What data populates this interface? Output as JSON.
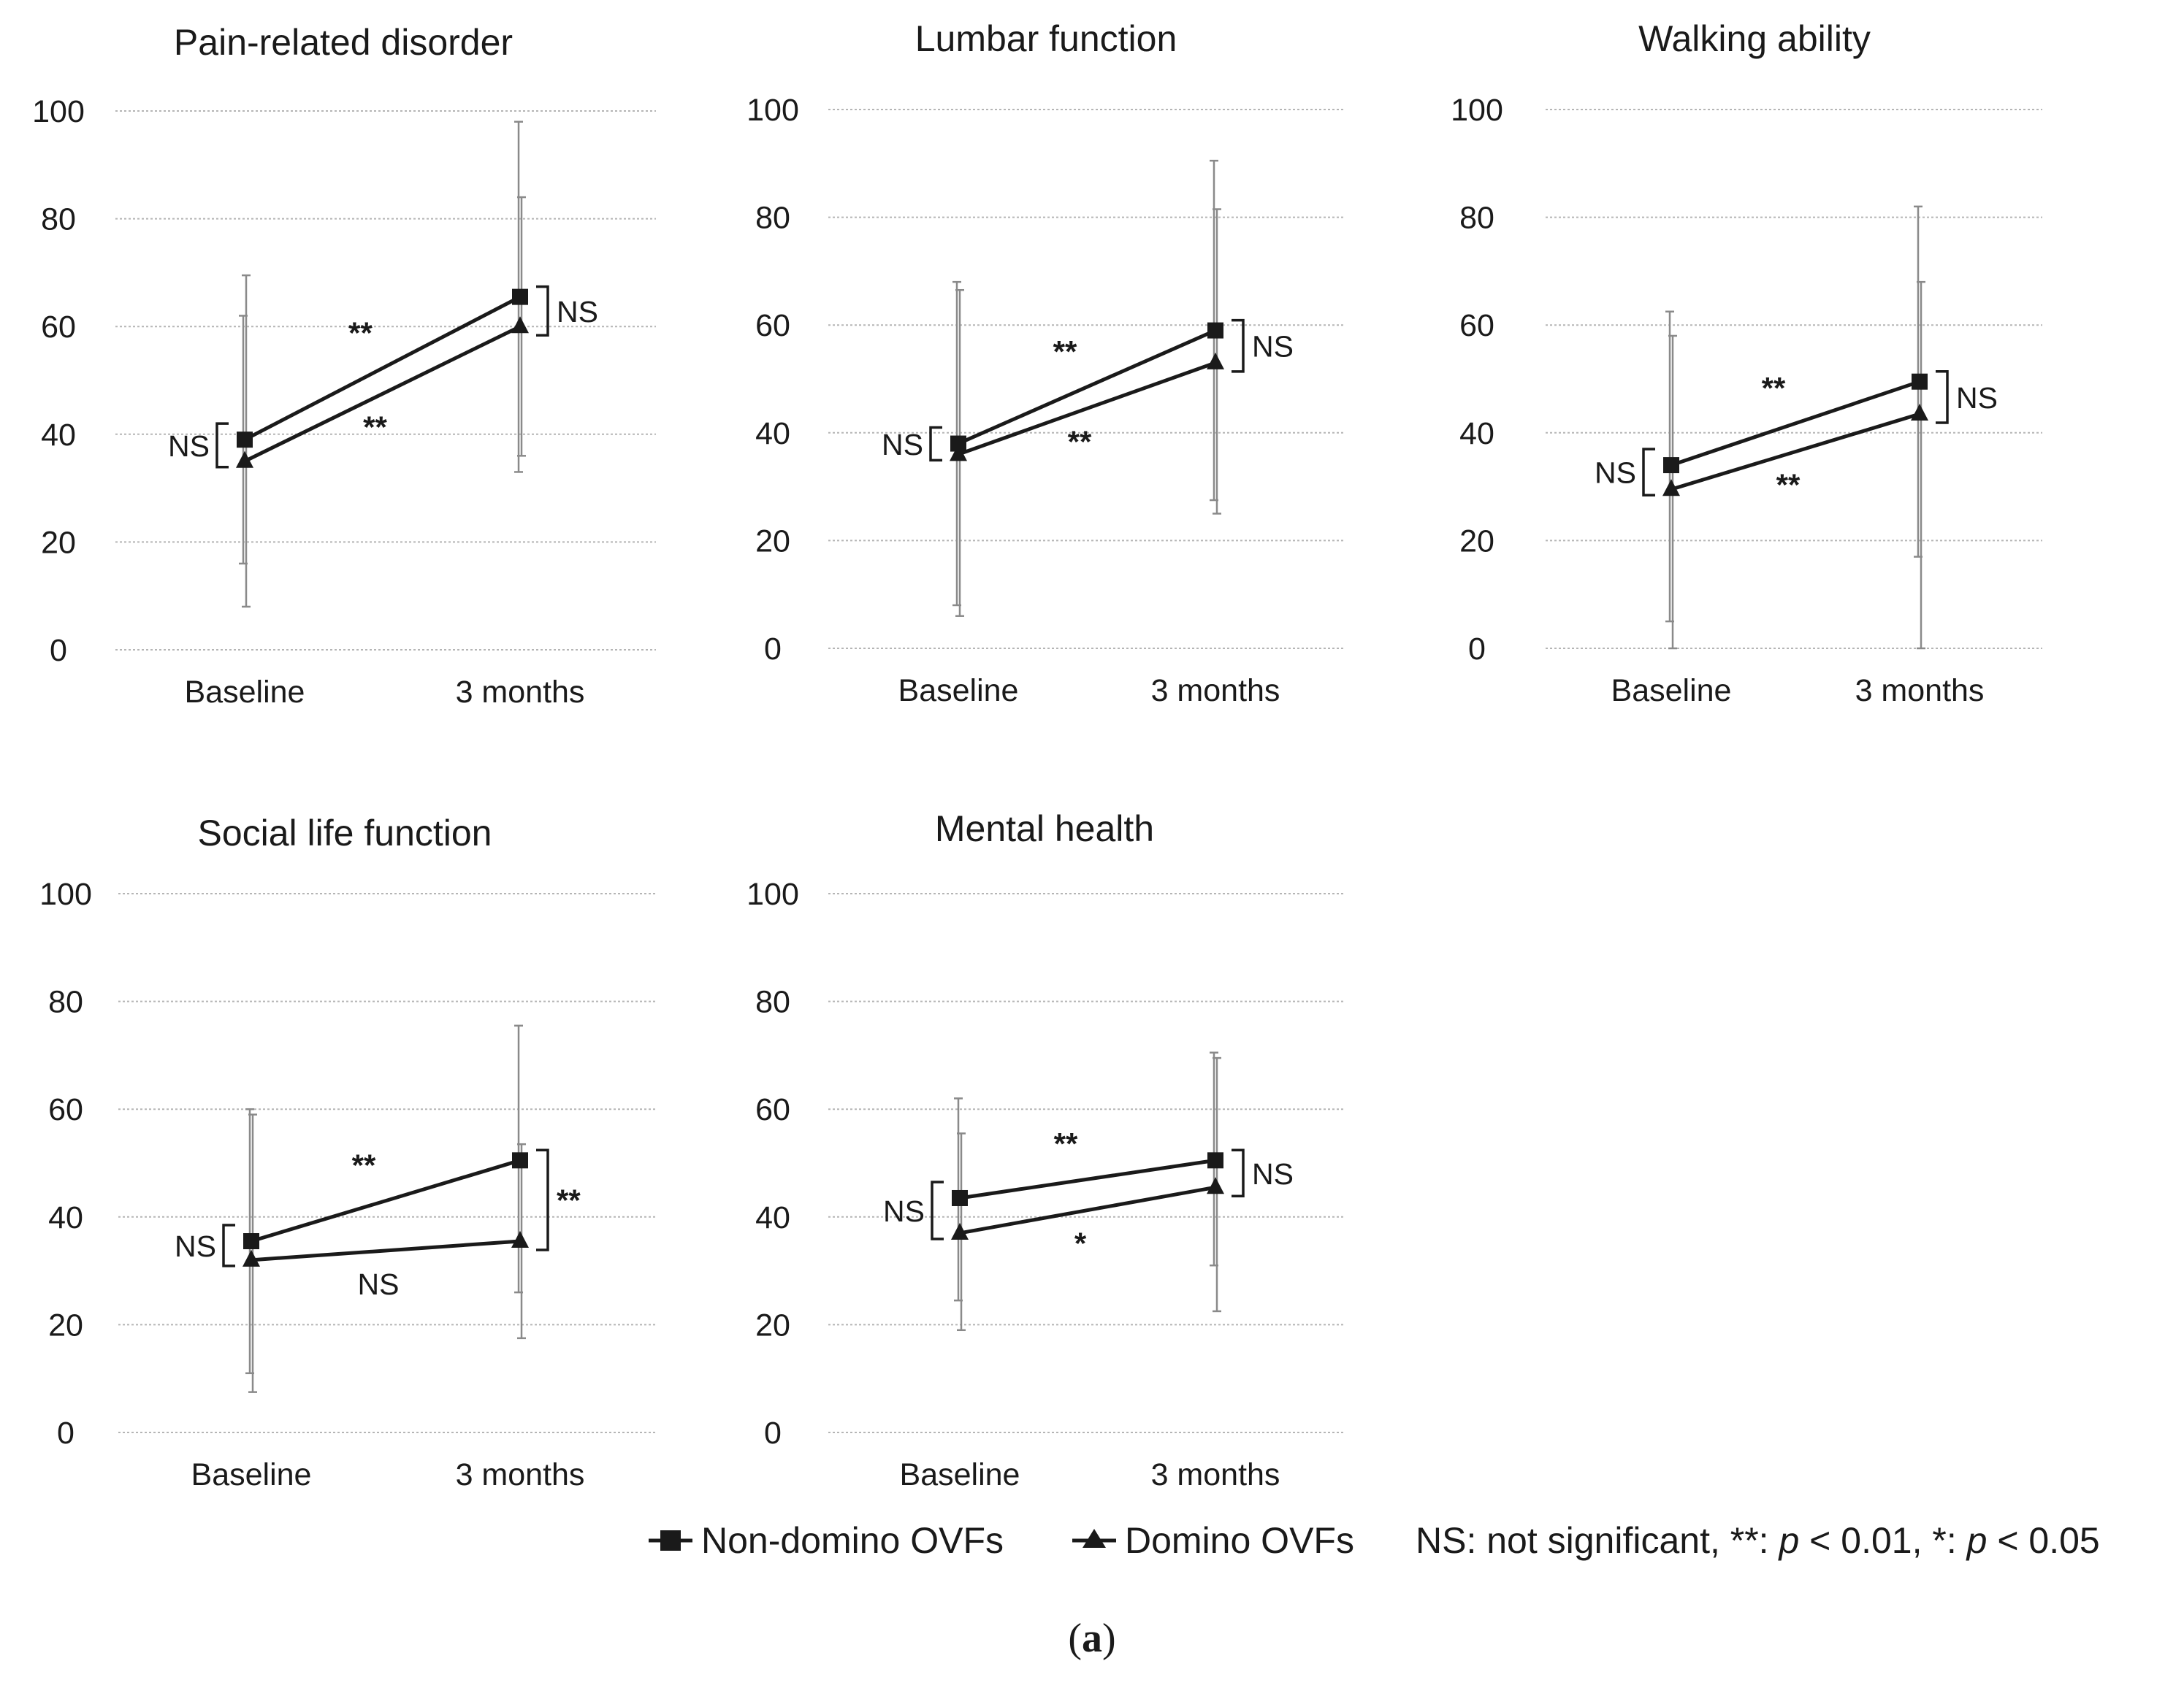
{
  "figure_caption": {
    "open": "(",
    "letter": "a",
    "close": ")"
  },
  "legend": {
    "non_domino": "Non-domino OVFs",
    "domino": "Domino OVFs",
    "note_prefix": "NS: not significant, **: ",
    "p_symbol": "p",
    "note_mid": " < 0.01, *: ",
    "note_end": " < 0.05"
  },
  "colors": {
    "line": "#1a1a1a",
    "grid": "#b5b5b5",
    "error_bar": "#8a8a8a"
  },
  "chart_data": [
    {
      "type": "line",
      "title": "Pain-related disorder",
      "categories": [
        "Baseline",
        "3 months"
      ],
      "ylim": [
        0,
        100
      ],
      "yticks": [
        "0",
        "20",
        "40",
        "60",
        "80",
        "100"
      ],
      "grid": true,
      "series": [
        {
          "name": "Non-domino OVFs",
          "marker": "square",
          "values": [
            39,
            65.5
          ],
          "error_low": [
            16,
            33
          ],
          "error_high": [
            62,
            98
          ]
        },
        {
          "name": "Domino OVFs",
          "marker": "triangle",
          "values": [
            35,
            60
          ],
          "error_low": [
            8,
            36
          ],
          "error_high": [
            69.5,
            84
          ]
        }
      ],
      "annotations": {
        "baseline_compare": "NS",
        "end_compare": "NS",
        "non_domino_change": "**",
        "domino_change": "**"
      }
    },
    {
      "type": "line",
      "title": "Lumbar function",
      "categories": [
        "Baseline",
        "3 months"
      ],
      "ylim": [
        0,
        100
      ],
      "yticks": [
        "0",
        "20",
        "40",
        "60",
        "80",
        "100"
      ],
      "grid": true,
      "series": [
        {
          "name": "Non-domino OVFs",
          "marker": "square",
          "values": [
            38,
            59
          ],
          "error_low": [
            8,
            27.5
          ],
          "error_high": [
            68,
            90.5
          ]
        },
        {
          "name": "Domino OVFs",
          "marker": "triangle",
          "values": [
            36,
            53
          ],
          "error_low": [
            6,
            25
          ],
          "error_high": [
            66.5,
            81.5
          ]
        }
      ],
      "annotations": {
        "baseline_compare": "NS",
        "end_compare": "NS",
        "non_domino_change": "**",
        "domino_change": "**"
      }
    },
    {
      "type": "line",
      "title": "Walking ability",
      "categories": [
        "Baseline",
        "3 months"
      ],
      "ylim": [
        0,
        100
      ],
      "yticks": [
        "0",
        "20",
        "40",
        "60",
        "80",
        "100"
      ],
      "grid": true,
      "series": [
        {
          "name": "Non-domino OVFs",
          "marker": "square",
          "values": [
            34,
            49.5
          ],
          "error_low": [
            5,
            17
          ],
          "error_high": [
            62.5,
            82
          ]
        },
        {
          "name": "Domino OVFs",
          "marker": "triangle",
          "values": [
            29.5,
            43.5
          ],
          "error_low": [
            0,
            0
          ],
          "error_high": [
            58,
            68
          ]
        }
      ],
      "annotations": {
        "baseline_compare": "NS",
        "end_compare": "NS",
        "non_domino_change": "**",
        "domino_change": "**"
      }
    },
    {
      "type": "line",
      "title": "Social life function",
      "categories": [
        "Baseline",
        "3 months"
      ],
      "ylim": [
        0,
        100
      ],
      "yticks": [
        "0",
        "20",
        "40",
        "60",
        "80",
        "100"
      ],
      "grid": true,
      "series": [
        {
          "name": "Non-domino OVFs",
          "marker": "square",
          "values": [
            35.5,
            50.5
          ],
          "error_low": [
            11,
            26
          ],
          "error_high": [
            60,
            75.5
          ]
        },
        {
          "name": "Domino OVFs",
          "marker": "triangle",
          "values": [
            32,
            35.5
          ],
          "error_low": [
            7.5,
            17.5
          ],
          "error_high": [
            59,
            53.5
          ]
        }
      ],
      "annotations": {
        "baseline_compare": "NS",
        "end_compare": "**",
        "non_domino_change": "**",
        "domino_change": "NS"
      }
    },
    {
      "type": "line",
      "title": "Mental health",
      "categories": [
        "Baseline",
        "3 months"
      ],
      "ylim": [
        0,
        100
      ],
      "yticks": [
        "0",
        "20",
        "40",
        "60",
        "80",
        "100"
      ],
      "grid": true,
      "series": [
        {
          "name": "Non-domino OVFs",
          "marker": "square",
          "values": [
            43.5,
            50.5
          ],
          "error_low": [
            24.5,
            31
          ],
          "error_high": [
            62,
            70.5
          ]
        },
        {
          "name": "Domino OVFs",
          "marker": "triangle",
          "values": [
            37,
            45.5
          ],
          "error_low": [
            19,
            22.5
          ],
          "error_high": [
            55.5,
            69.5
          ]
        }
      ],
      "annotations": {
        "baseline_compare": "NS",
        "end_compare": "NS",
        "non_domino_change": "**",
        "domino_change": "*"
      }
    }
  ]
}
